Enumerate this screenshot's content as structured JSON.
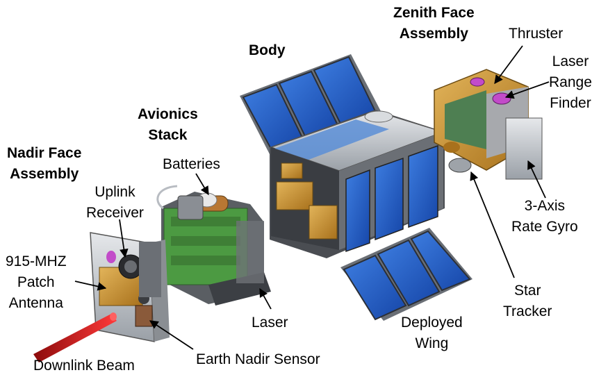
{
  "labels": {
    "zenith_face_assembly": [
      "Zenith Face",
      "Assembly"
    ],
    "thruster": "Thruster",
    "laser_range_finder": [
      "Laser",
      "Range",
      "Finder"
    ],
    "body": "Body",
    "avionics_stack": [
      "Avionics",
      "Stack"
    ],
    "nadir_face_assembly": [
      "Nadir Face",
      "Assembly"
    ],
    "batteries": "Batteries",
    "uplink_receiver": [
      "Uplink",
      "Receiver"
    ],
    "patch_antenna": [
      "915-MHZ",
      "Patch",
      "Antenna"
    ],
    "three_axis_rate_gyro": [
      "3-Axis",
      "Rate Gyro"
    ],
    "star_tracker": [
      "Star",
      "Tracker"
    ],
    "deployed_wing": [
      "Deployed",
      "Wing"
    ],
    "laser": "Laser",
    "earth_nadir_sensor": "Earth Nadir Sensor",
    "downlink_beam": "Downlink Beam"
  },
  "colors": {
    "solar_panel": "#1f5fc8",
    "frame_gold": "#c98f2a",
    "metal_gray": "#b8bcc2",
    "pcb_green": "#3f9a3a",
    "laser_beam": "#d21414"
  }
}
